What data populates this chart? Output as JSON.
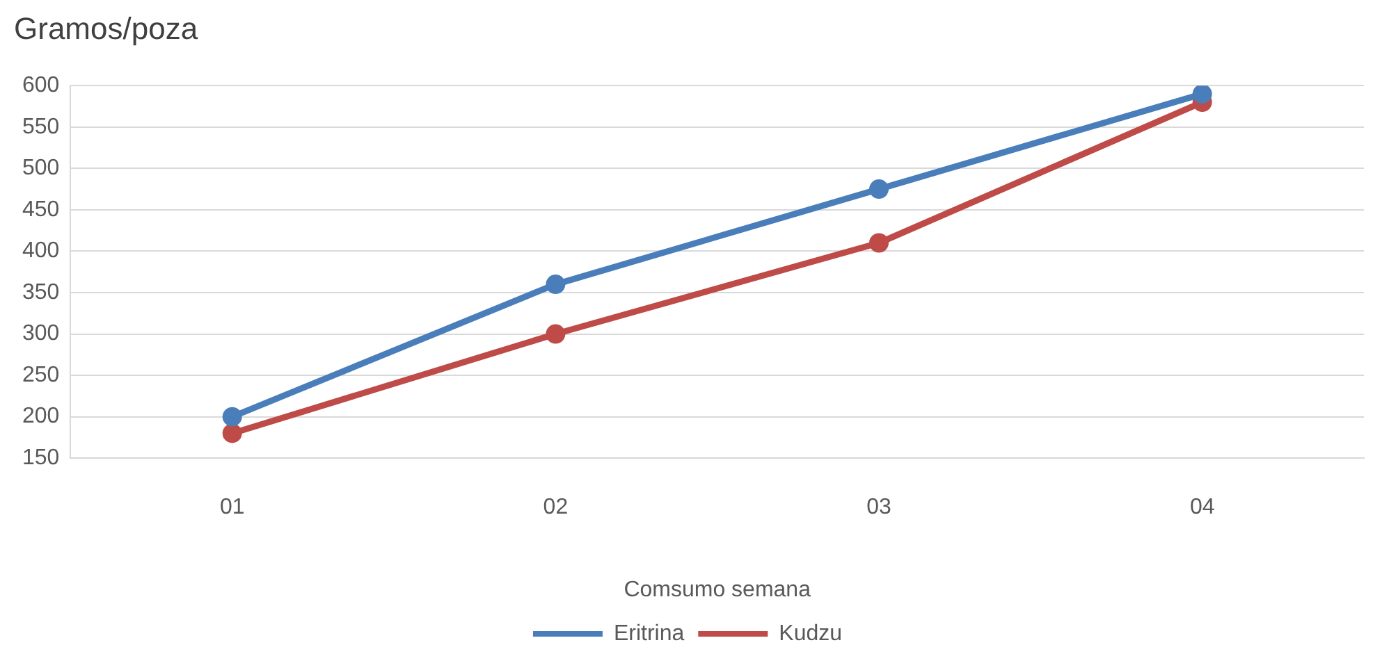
{
  "chart_data": {
    "type": "line",
    "ylabel": "Gramos/poza",
    "xlabel": "Comsumo semana",
    "categories": [
      "01",
      "02",
      "03",
      "04"
    ],
    "series": [
      {
        "name": "Eritrina",
        "color": "#4a7ebb",
        "values": [
          200,
          360,
          475,
          590
        ]
      },
      {
        "name": "Kudzu",
        "color": "#be4b48",
        "values": [
          180,
          300,
          410,
          580
        ]
      }
    ],
    "ylim": [
      150,
      600
    ],
    "yticks": [
      150,
      200,
      250,
      300,
      350,
      400,
      450,
      500,
      550,
      600
    ],
    "grid": "y",
    "legend": "bottom",
    "marker": "circle",
    "line_style": "solid"
  }
}
